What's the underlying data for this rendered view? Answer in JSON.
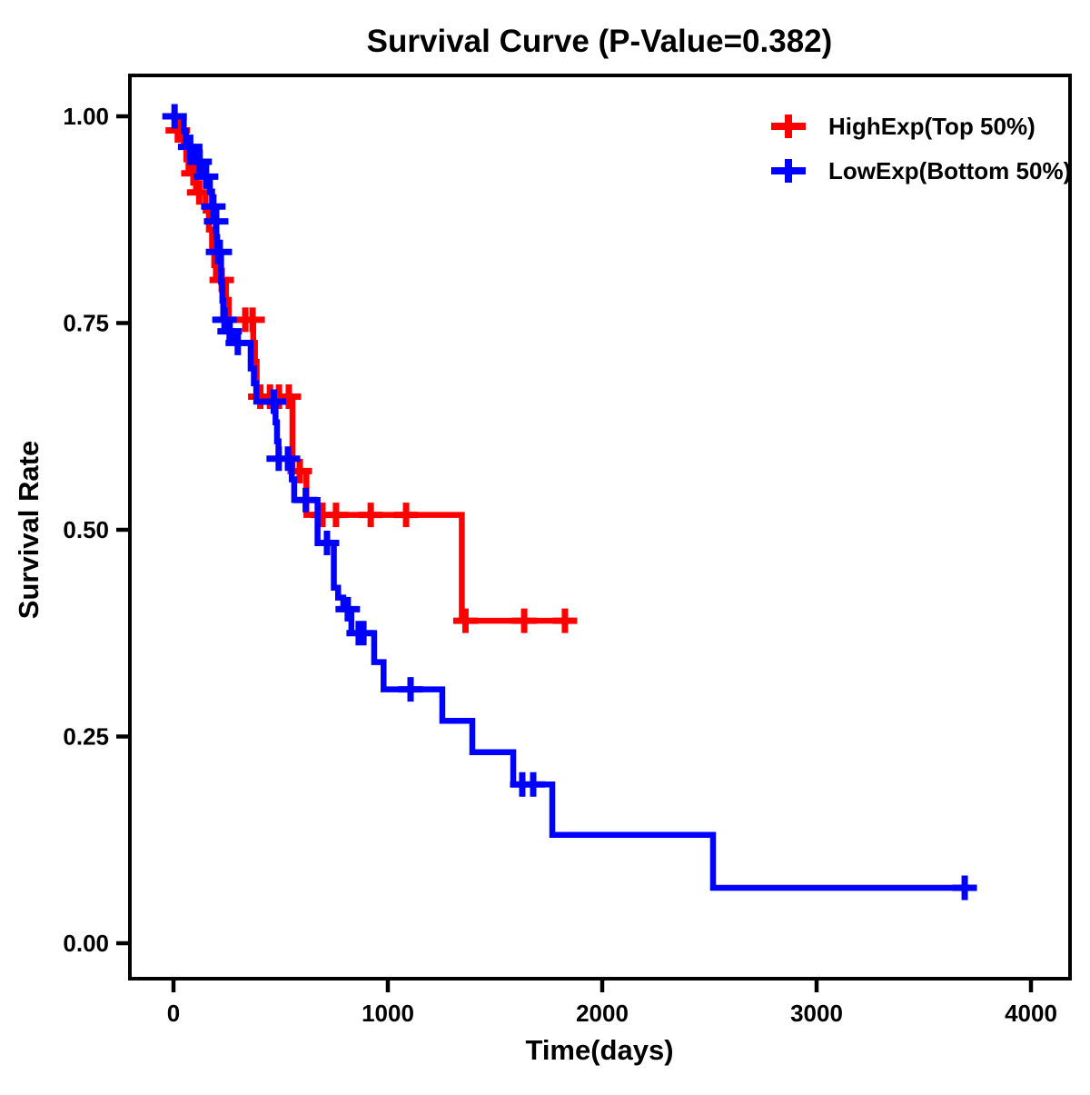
{
  "figure": {
    "background": "#FFFFFF",
    "text_color": "#000000",
    "axis_color": "#000000"
  },
  "chart_data": {
    "type": "line",
    "subtype": "kaplan-meier-step-survival",
    "title": "Survival Curve (P-Value=0.382)",
    "p_value": 0.382,
    "xlabel": "Time(days)",
    "ylabel": "Survival Rate",
    "grid": false,
    "legend_position": "top-right",
    "xlim": [
      -205,
      4220
    ],
    "ylim": [
      -0.043,
      1.049
    ],
    "x_ticks": [
      {
        "value": 0,
        "label": "0"
      },
      {
        "value": 1000,
        "label": "1000"
      },
      {
        "value": 2000,
        "label": "2000"
      },
      {
        "value": 3000,
        "label": "3000"
      },
      {
        "value": 4000,
        "label": "4000"
      }
    ],
    "y_ticks": [
      {
        "value": 0.0,
        "label": "0.00"
      },
      {
        "value": 0.25,
        "label": "0.25"
      },
      {
        "value": 0.5,
        "label": "0.50"
      },
      {
        "value": 0.75,
        "label": "0.75"
      },
      {
        "value": 1.0,
        "label": "1.00"
      }
    ],
    "series": [
      {
        "name": "HighExp(Top 50%)",
        "color": "#FF0000",
        "marker": "plus-censor",
        "steps": [
          [
            0,
            1.0
          ],
          [
            10,
            0.983
          ],
          [
            48,
            0.966
          ],
          [
            60,
            0.948
          ],
          [
            70,
            0.931
          ],
          [
            105,
            0.908
          ],
          [
            150,
            0.886
          ],
          [
            165,
            0.863
          ],
          [
            180,
            0.841
          ],
          [
            190,
            0.82
          ],
          [
            198,
            0.802
          ],
          [
            245,
            0.778
          ],
          [
            258,
            0.754
          ],
          [
            372,
            0.726
          ],
          [
            380,
            0.703
          ],
          [
            388,
            0.661
          ],
          [
            555,
            0.571
          ],
          [
            620,
            0.518
          ],
          [
            1345,
            0.39
          ]
        ],
        "end_time": 1880,
        "censor_times": [
          20,
          93,
          120,
          225,
          335,
          369,
          405,
          450,
          492,
          538,
          589,
          695,
          758,
          920,
          1085,
          1362,
          1636,
          1826
        ]
      },
      {
        "name": "LowExp(Bottom 50%)",
        "color": "#0000FF",
        "marker": "plus-censor",
        "steps": [
          [
            0,
            1.0
          ],
          [
            48,
            0.982
          ],
          [
            58,
            0.963
          ],
          [
            105,
            0.945
          ],
          [
            140,
            0.927
          ],
          [
            170,
            0.909
          ],
          [
            180,
            0.891
          ],
          [
            192,
            0.873
          ],
          [
            200,
            0.854
          ],
          [
            204,
            0.836
          ],
          [
            222,
            0.8
          ],
          [
            228,
            0.777
          ],
          [
            232,
            0.754
          ],
          [
            258,
            0.74
          ],
          [
            284,
            0.726
          ],
          [
            360,
            0.695
          ],
          [
            375,
            0.677
          ],
          [
            386,
            0.655
          ],
          [
            476,
            0.63
          ],
          [
            483,
            0.607
          ],
          [
            490,
            0.586
          ],
          [
            552,
            0.561
          ],
          [
            563,
            0.536
          ],
          [
            672,
            0.484
          ],
          [
            748,
            0.43
          ],
          [
            768,
            0.418
          ],
          [
            792,
            0.404
          ],
          [
            830,
            0.375
          ],
          [
            936,
            0.34
          ],
          [
            980,
            0.307
          ],
          [
            1254,
            0.269
          ],
          [
            1394,
            0.231
          ],
          [
            1585,
            0.192
          ],
          [
            1767,
            0.131
          ],
          [
            2517,
            0.067
          ]
        ],
        "end_time": 3746,
        "censor_times": [
          5,
          78,
          122,
          152,
          186,
          199,
          208,
          216,
          238,
          262,
          300,
          468,
          491,
          534,
          617,
          716,
          813,
          864,
          886,
          1106,
          1627,
          1678,
          3691
        ]
      }
    ]
  }
}
